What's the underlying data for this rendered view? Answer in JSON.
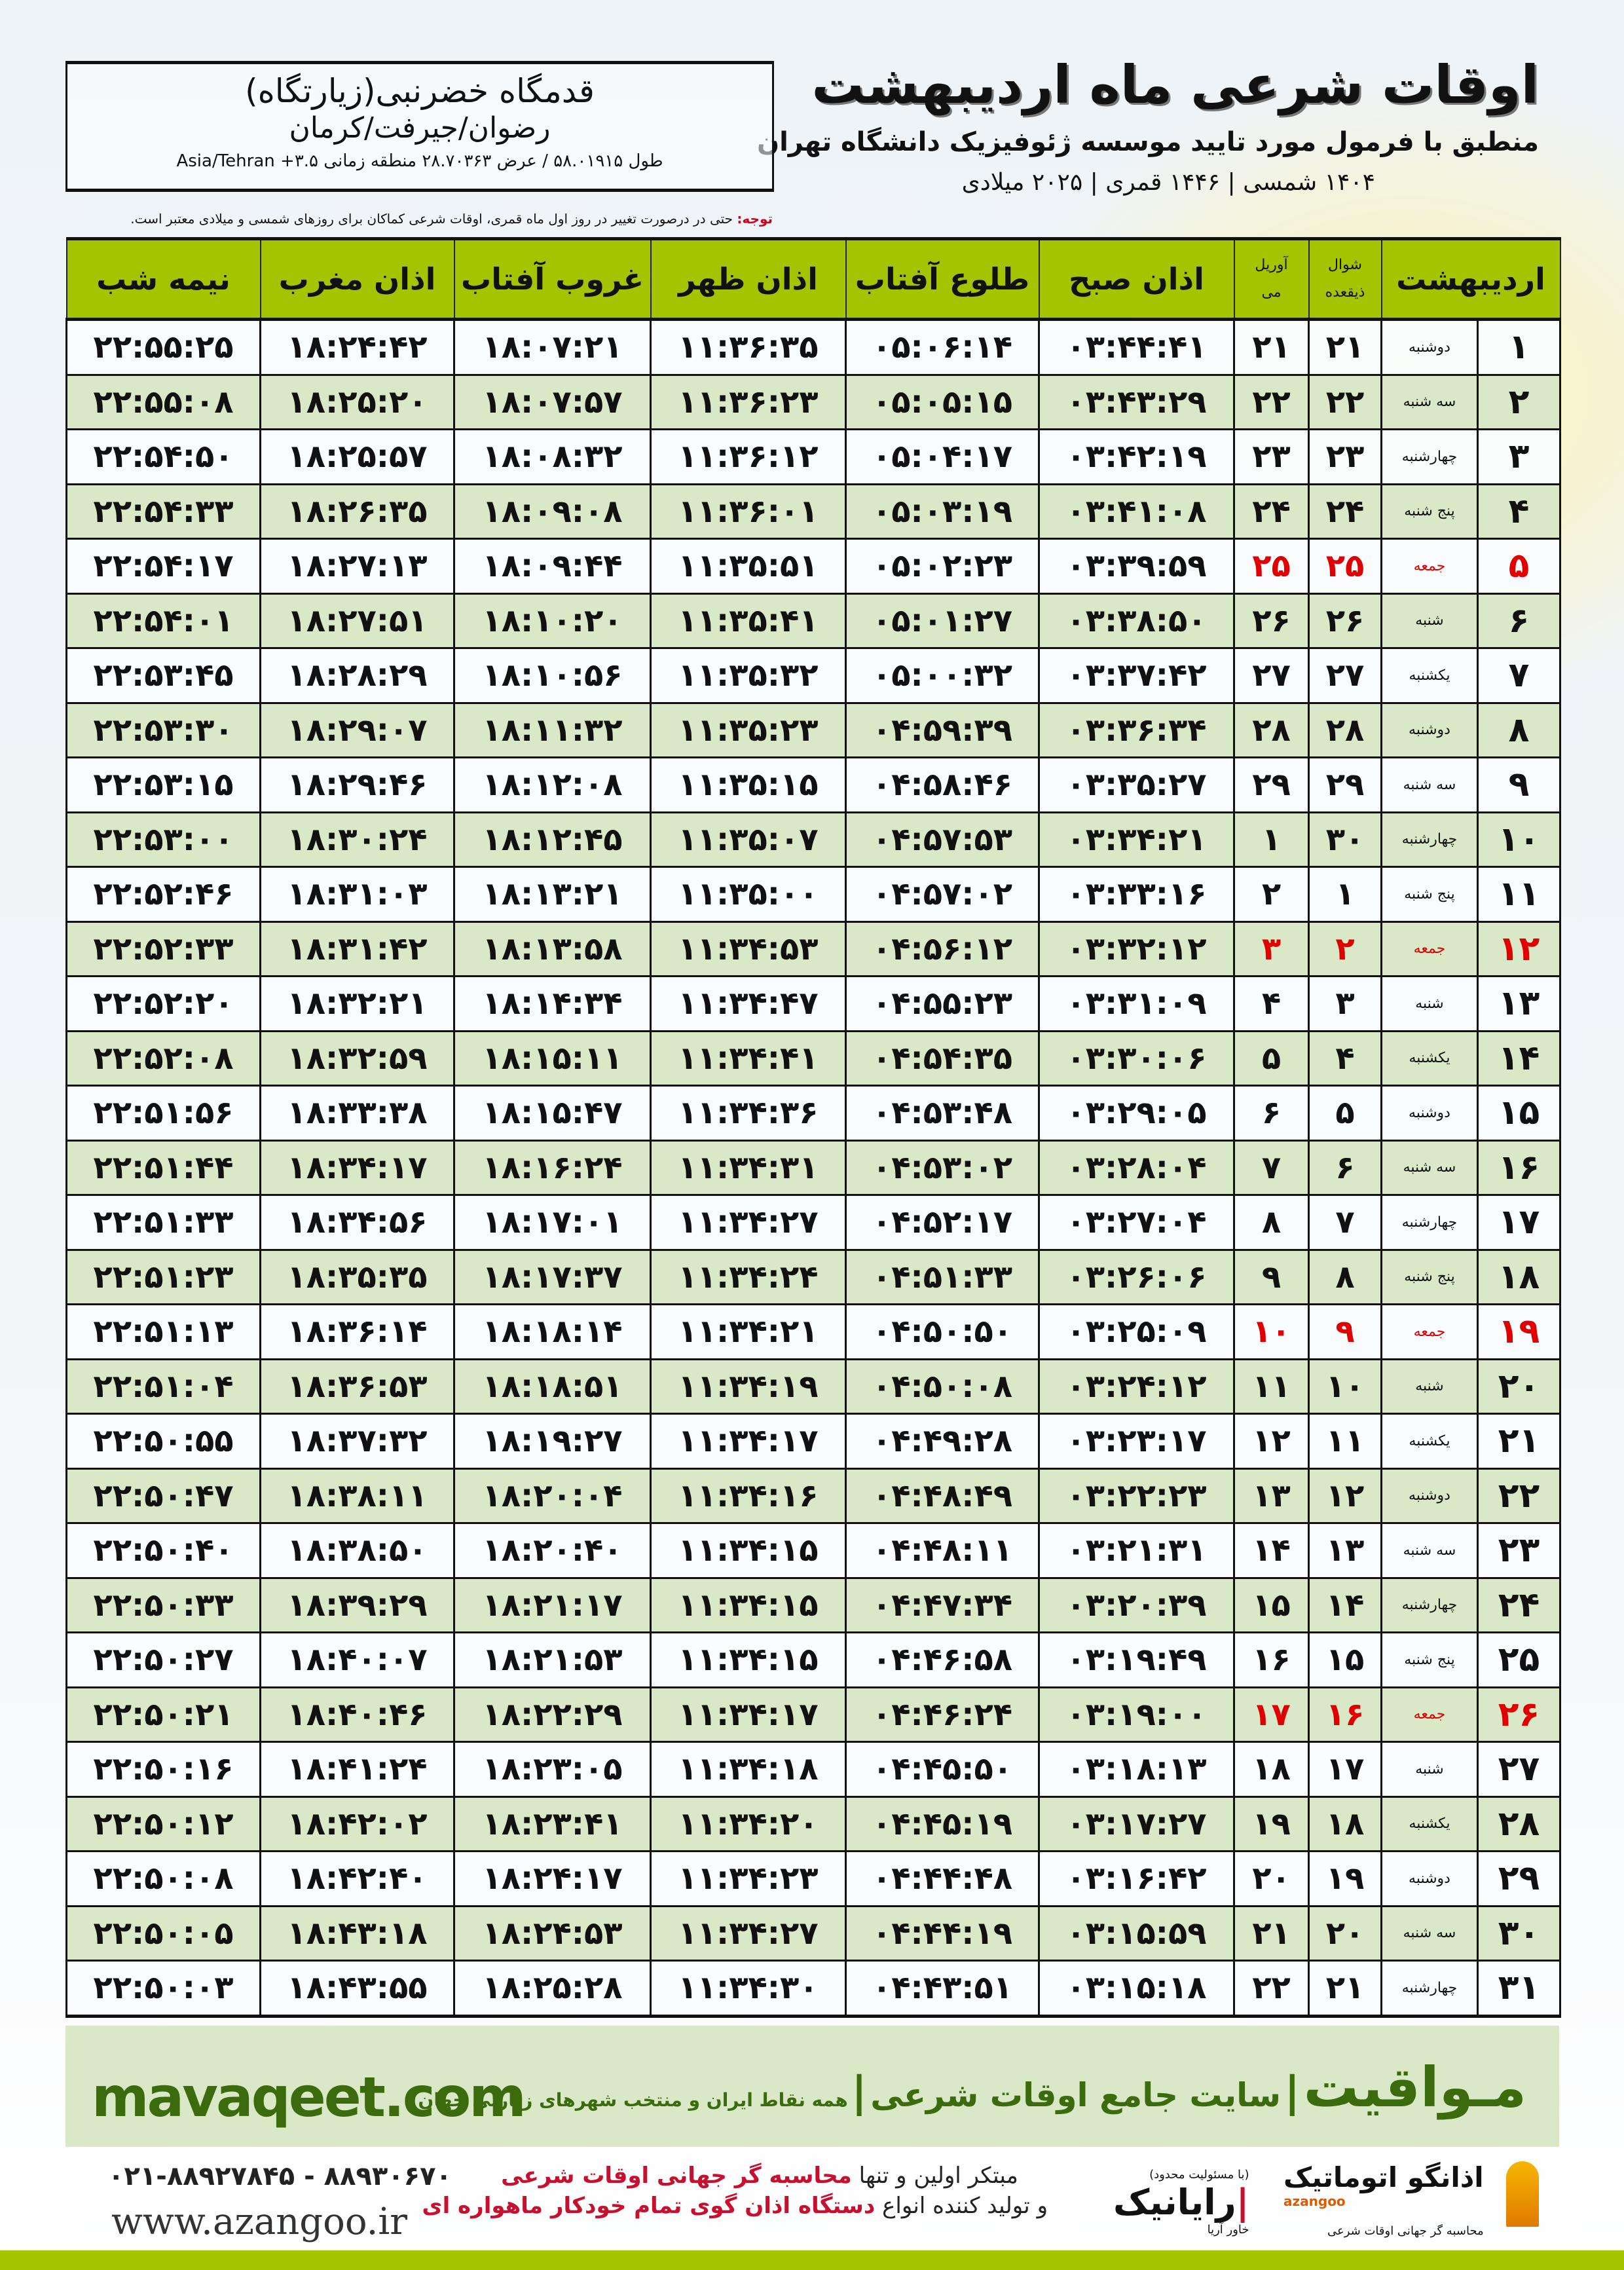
{
  "header": {
    "title": "اوقات شرعی ماه اردیبهشت",
    "subtitle": "منطبق با فرمول مورد تایید موسسه ژئوفیزیک دانشگاه تهران",
    "years": "۱۴۰۴ شمسی | ۱۴۴۶ قمری | ۲۰۲۵ میلادی"
  },
  "location": {
    "name": "قدمگاه خضرنبی(زیارتگاه)",
    "city": "رضوان/جیرفت/کرمان",
    "coords": "طول ۵۸.۰۱۹۱۵ / عرض ۲۸.۷۰۳۶۳ منطقه زمانی ۳.۵+ Asia/Tehran"
  },
  "note": {
    "label": "توجه:",
    "text": " حتی در درصورت تغییر در روز اول ماه قمری، اوقات شرعی کماکان برای روزهای شمسی و میلادی معتبر است."
  },
  "columns": {
    "month": "اردیبهشت",
    "hijri_1": "شوال",
    "hijri_2": "ذیقعده",
    "greg_1": "آوریل",
    "greg_2": "می",
    "fajr": "اذان صبح",
    "sunrise": "طلوع آفتاب",
    "dhuhr": "اذان ظهر",
    "sunset": "غروب آفتاب",
    "maghrib": "اذان مغرب",
    "midnight": "نیمه شب"
  },
  "colors": {
    "header_green": "#a4c400",
    "row_alt": "#d9e8c6",
    "friday_red": "#e00000",
    "brand_green": "#3b6b0c"
  },
  "rows": [
    [
      "۱",
      "دوشنبه",
      "۲۱",
      "۲۱",
      "۰۳:۴۴:۴۱",
      "۰۵:۰۶:۱۴",
      "۱۱:۳۶:۳۵",
      "۱۸:۰۷:۲۱",
      "۱۸:۲۴:۴۲",
      "۲۲:۵۵:۲۵",
      false
    ],
    [
      "۲",
      "سه شنبه",
      "۲۲",
      "۲۲",
      "۰۳:۴۳:۲۹",
      "۰۵:۰۵:۱۵",
      "۱۱:۳۶:۲۳",
      "۱۸:۰۷:۵۷",
      "۱۸:۲۵:۲۰",
      "۲۲:۵۵:۰۸",
      false
    ],
    [
      "۳",
      "چهارشنبه",
      "۲۳",
      "۲۳",
      "۰۳:۴۲:۱۹",
      "۰۵:۰۴:۱۷",
      "۱۱:۳۶:۱۲",
      "۱۸:۰۸:۳۲",
      "۱۸:۲۵:۵۷",
      "۲۲:۵۴:۵۰",
      false
    ],
    [
      "۴",
      "پنج شنبه",
      "۲۴",
      "۲۴",
      "۰۳:۴۱:۰۸",
      "۰۵:۰۳:۱۹",
      "۱۱:۳۶:۰۱",
      "۱۸:۰۹:۰۸",
      "۱۸:۲۶:۳۵",
      "۲۲:۵۴:۳۳",
      false
    ],
    [
      "۵",
      "جمعه",
      "۲۵",
      "۲۵",
      "۰۳:۳۹:۵۹",
      "۰۵:۰۲:۲۳",
      "۱۱:۳۵:۵۱",
      "۱۸:۰۹:۴۴",
      "۱۸:۲۷:۱۳",
      "۲۲:۵۴:۱۷",
      true
    ],
    [
      "۶",
      "شنبه",
      "۲۶",
      "۲۶",
      "۰۳:۳۸:۵۰",
      "۰۵:۰۱:۲۷",
      "۱۱:۳۵:۴۱",
      "۱۸:۱۰:۲۰",
      "۱۸:۲۷:۵۱",
      "۲۲:۵۴:۰۱",
      false
    ],
    [
      "۷",
      "یکشنبه",
      "۲۷",
      "۲۷",
      "۰۳:۳۷:۴۲",
      "۰۵:۰۰:۳۲",
      "۱۱:۳۵:۳۲",
      "۱۸:۱۰:۵۶",
      "۱۸:۲۸:۲۹",
      "۲۲:۵۳:۴۵",
      false
    ],
    [
      "۸",
      "دوشنبه",
      "۲۸",
      "۲۸",
      "۰۳:۳۶:۳۴",
      "۰۴:۵۹:۳۹",
      "۱۱:۳۵:۲۳",
      "۱۸:۱۱:۳۲",
      "۱۸:۲۹:۰۷",
      "۲۲:۵۳:۳۰",
      false
    ],
    [
      "۹",
      "سه شنبه",
      "۲۹",
      "۲۹",
      "۰۳:۳۵:۲۷",
      "۰۴:۵۸:۴۶",
      "۱۱:۳۵:۱۵",
      "۱۸:۱۲:۰۸",
      "۱۸:۲۹:۴۶",
      "۲۲:۵۳:۱۵",
      false
    ],
    [
      "۱۰",
      "چهارشنبه",
      "۱",
      "۳۰",
      "۰۳:۳۴:۲۱",
      "۰۴:۵۷:۵۳",
      "۱۱:۳۵:۰۷",
      "۱۸:۱۲:۴۵",
      "۱۸:۳۰:۲۴",
      "۲۲:۵۳:۰۰",
      false
    ],
    [
      "۱۱",
      "پنج شنبه",
      "۲",
      "۱",
      "۰۳:۳۳:۱۶",
      "۰۴:۵۷:۰۲",
      "۱۱:۳۵:۰۰",
      "۱۸:۱۳:۲۱",
      "۱۸:۳۱:۰۳",
      "۲۲:۵۲:۴۶",
      false
    ],
    [
      "۱۲",
      "جمعه",
      "۳",
      "۲",
      "۰۳:۳۲:۱۲",
      "۰۴:۵۶:۱۲",
      "۱۱:۳۴:۵۳",
      "۱۸:۱۳:۵۸",
      "۱۸:۳۱:۴۲",
      "۲۲:۵۲:۳۳",
      true
    ],
    [
      "۱۳",
      "شنبه",
      "۴",
      "۳",
      "۰۳:۳۱:۰۹",
      "۰۴:۵۵:۲۳",
      "۱۱:۳۴:۴۷",
      "۱۸:۱۴:۳۴",
      "۱۸:۳۲:۲۱",
      "۲۲:۵۲:۲۰",
      false
    ],
    [
      "۱۴",
      "یکشنبه",
      "۵",
      "۴",
      "۰۳:۳۰:۰۶",
      "۰۴:۵۴:۳۵",
      "۱۱:۳۴:۴۱",
      "۱۸:۱۵:۱۱",
      "۱۸:۳۲:۵۹",
      "۲۲:۵۲:۰۸",
      false
    ],
    [
      "۱۵",
      "دوشنبه",
      "۶",
      "۵",
      "۰۳:۲۹:۰۵",
      "۰۴:۵۳:۴۸",
      "۱۱:۳۴:۳۶",
      "۱۸:۱۵:۴۷",
      "۱۸:۳۳:۳۸",
      "۲۲:۵۱:۵۶",
      false
    ],
    [
      "۱۶",
      "سه شنبه",
      "۷",
      "۶",
      "۰۳:۲۸:۰۴",
      "۰۴:۵۳:۰۲",
      "۱۱:۳۴:۳۱",
      "۱۸:۱۶:۲۴",
      "۱۸:۳۴:۱۷",
      "۲۲:۵۱:۴۴",
      false
    ],
    [
      "۱۷",
      "چهارشنبه",
      "۸",
      "۷",
      "۰۳:۲۷:۰۴",
      "۰۴:۵۲:۱۷",
      "۱۱:۳۴:۲۷",
      "۱۸:۱۷:۰۱",
      "۱۸:۳۴:۵۶",
      "۲۲:۵۱:۳۳",
      false
    ],
    [
      "۱۸",
      "پنج شنبه",
      "۹",
      "۸",
      "۰۳:۲۶:۰۶",
      "۰۴:۵۱:۳۳",
      "۱۱:۳۴:۲۴",
      "۱۸:۱۷:۳۷",
      "۱۸:۳۵:۳۵",
      "۲۲:۵۱:۲۳",
      false
    ],
    [
      "۱۹",
      "جمعه",
      "۱۰",
      "۹",
      "۰۳:۲۵:۰۹",
      "۰۴:۵۰:۵۰",
      "۱۱:۳۴:۲۱",
      "۱۸:۱۸:۱۴",
      "۱۸:۳۶:۱۴",
      "۲۲:۵۱:۱۳",
      true
    ],
    [
      "۲۰",
      "شنبه",
      "۱۱",
      "۱۰",
      "۰۳:۲۴:۱۲",
      "۰۴:۵۰:۰۸",
      "۱۱:۳۴:۱۹",
      "۱۸:۱۸:۵۱",
      "۱۸:۳۶:۵۳",
      "۲۲:۵۱:۰۴",
      false
    ],
    [
      "۲۱",
      "یکشنبه",
      "۱۲",
      "۱۱",
      "۰۳:۲۳:۱۷",
      "۰۴:۴۹:۲۸",
      "۱۱:۳۴:۱۷",
      "۱۸:۱۹:۲۷",
      "۱۸:۳۷:۳۲",
      "۲۲:۵۰:۵۵",
      false
    ],
    [
      "۲۲",
      "دوشنبه",
      "۱۳",
      "۱۲",
      "۰۳:۲۲:۲۳",
      "۰۴:۴۸:۴۹",
      "۱۱:۳۴:۱۶",
      "۱۸:۲۰:۰۴",
      "۱۸:۳۸:۱۱",
      "۲۲:۵۰:۴۷",
      false
    ],
    [
      "۲۳",
      "سه شنبه",
      "۱۴",
      "۱۳",
      "۰۳:۲۱:۳۱",
      "۰۴:۴۸:۱۱",
      "۱۱:۳۴:۱۵",
      "۱۸:۲۰:۴۰",
      "۱۸:۳۸:۵۰",
      "۲۲:۵۰:۴۰",
      false
    ],
    [
      "۲۴",
      "چهارشنبه",
      "۱۵",
      "۱۴",
      "۰۳:۲۰:۳۹",
      "۰۴:۴۷:۳۴",
      "۱۱:۳۴:۱۵",
      "۱۸:۲۱:۱۷",
      "۱۸:۳۹:۲۹",
      "۲۲:۵۰:۳۳",
      false
    ],
    [
      "۲۵",
      "پنج شنبه",
      "۱۶",
      "۱۵",
      "۰۳:۱۹:۴۹",
      "۰۴:۴۶:۵۸",
      "۱۱:۳۴:۱۵",
      "۱۸:۲۱:۵۳",
      "۱۸:۴۰:۰۷",
      "۲۲:۵۰:۲۷",
      false
    ],
    [
      "۲۶",
      "جمعه",
      "۱۷",
      "۱۶",
      "۰۳:۱۹:۰۰",
      "۰۴:۴۶:۲۴",
      "۱۱:۳۴:۱۷",
      "۱۸:۲۲:۲۹",
      "۱۸:۴۰:۴۶",
      "۲۲:۵۰:۲۱",
      true
    ],
    [
      "۲۷",
      "شنبه",
      "۱۸",
      "۱۷",
      "۰۳:۱۸:۱۳",
      "۰۴:۴۵:۵۰",
      "۱۱:۳۴:۱۸",
      "۱۸:۲۳:۰۵",
      "۱۸:۴۱:۲۴",
      "۲۲:۵۰:۱۶",
      false
    ],
    [
      "۲۸",
      "یکشنبه",
      "۱۹",
      "۱۸",
      "۰۳:۱۷:۲۷",
      "۰۴:۴۵:۱۹",
      "۱۱:۳۴:۲۰",
      "۱۸:۲۳:۴۱",
      "۱۸:۴۲:۰۲",
      "۲۲:۵۰:۱۲",
      false
    ],
    [
      "۲۹",
      "دوشنبه",
      "۲۰",
      "۱۹",
      "۰۳:۱۶:۴۲",
      "۰۴:۴۴:۴۸",
      "۱۱:۳۴:۲۳",
      "۱۸:۲۴:۱۷",
      "۱۸:۴۲:۴۰",
      "۲۲:۵۰:۰۸",
      false
    ],
    [
      "۳۰",
      "سه شنبه",
      "۲۱",
      "۲۰",
      "۰۳:۱۵:۵۹",
      "۰۴:۴۴:۱۹",
      "۱۱:۳۴:۲۷",
      "۱۸:۲۴:۵۳",
      "۱۸:۴۳:۱۸",
      "۲۲:۵۰:۰۵",
      false
    ],
    [
      "۳۱",
      "چهارشنبه",
      "۲۲",
      "۲۱",
      "۰۳:۱۵:۱۸",
      "۰۴:۴۳:۵۱",
      "۱۱:۳۴:۳۰",
      "۱۸:۲۵:۲۸",
      "۱۸:۴۳:۵۵",
      "۲۲:۵۰:۰۳",
      false
    ]
  ],
  "banner": {
    "brand": "مـواقیت",
    "tagline": "سایت جامع اوقات شرعی",
    "sub": "همه نقاط ایران و منتخب شهرهای زیارتی جهان",
    "site": "mavaqeet.com"
  },
  "footer": {
    "phones": "۰۲۱-۸۸۹۲۷۸۴۵ - ۸۸۹۳۰۶۷۰",
    "www": "www.azangoo.ir",
    "slogan1_a": "مبتکر اولین و تنها ",
    "slogan1_b": "محاسبه گر جهانی اوقات شرعی",
    "slogan2_a": "و تولید کننده انواع ",
    "slogan2_b": "دستگاه اذان گوی تمام خودکار ماهواره ای",
    "rayanik": "رایانیک",
    "rayanik_sub": "خاور آریا",
    "rayanik_note": "(با مسئولیت محدود)",
    "azangoo": "اذانگو اتوماتیک",
    "azangoo_en": "azangoo",
    "azangoo_tag": "محاسبه گر جهانی اوقات شرعی"
  }
}
